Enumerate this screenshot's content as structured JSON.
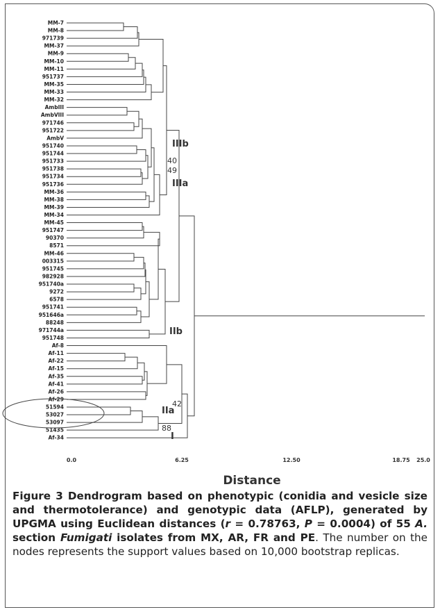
{
  "figure": {
    "leaves": [
      "MM-7",
      "MM-8",
      "971739",
      "MM-37",
      "MM-9",
      "MM-10",
      "MM-11",
      "951737",
      "MM-35",
      "MM-33",
      "MM-32",
      "AmbIII",
      "AmbVIII",
      "971746",
      "951722",
      "AmbV",
      "951740",
      "951744",
      "951733",
      "951738",
      "951734",
      "951736",
      "MM-36",
      "MM-38",
      "MM-39",
      "MM-34",
      "MM-45",
      "951747",
      "90370",
      "8571",
      "MM-46",
      "003315",
      "951745",
      "982928",
      "951740a",
      "9272",
      "6578",
      "951741",
      "951646a",
      "88248",
      "971744a",
      "951748",
      "Af-8",
      "Af-11",
      "Af-22",
      "Af-15",
      "Af-35",
      "Af-41",
      "Af-26",
      "Af-29",
      "51594",
      "53027",
      "53097",
      "51435",
      "Af-34"
    ],
    "clade_labels": [
      "IIIb",
      "IIIa",
      "IIb",
      "IIa",
      "I"
    ],
    "support_values": [
      "40",
      "49",
      "42",
      "88"
    ],
    "axis_ticks": [
      "0.0",
      "6.25",
      "12.50",
      "18.75",
      "25.0"
    ],
    "axis_label": "Distance"
  },
  "caption": {
    "segments": [
      "Figure 3 Dendrogram based on phenotypic (conidia and vesicle size and thermotolerance) and genotypic data (AFLP), generated by UPGMA using Euclidean distances (",
      "r",
      " = 0.78763, ",
      "P",
      " = 0.0004) of 55 ",
      "A.",
      " section ",
      "Fumigati",
      " isolates from MX, AR, FR and PE",
      ". The number on the nodes represents the support values based on 10,000 bootstrap replicas."
    ]
  }
}
